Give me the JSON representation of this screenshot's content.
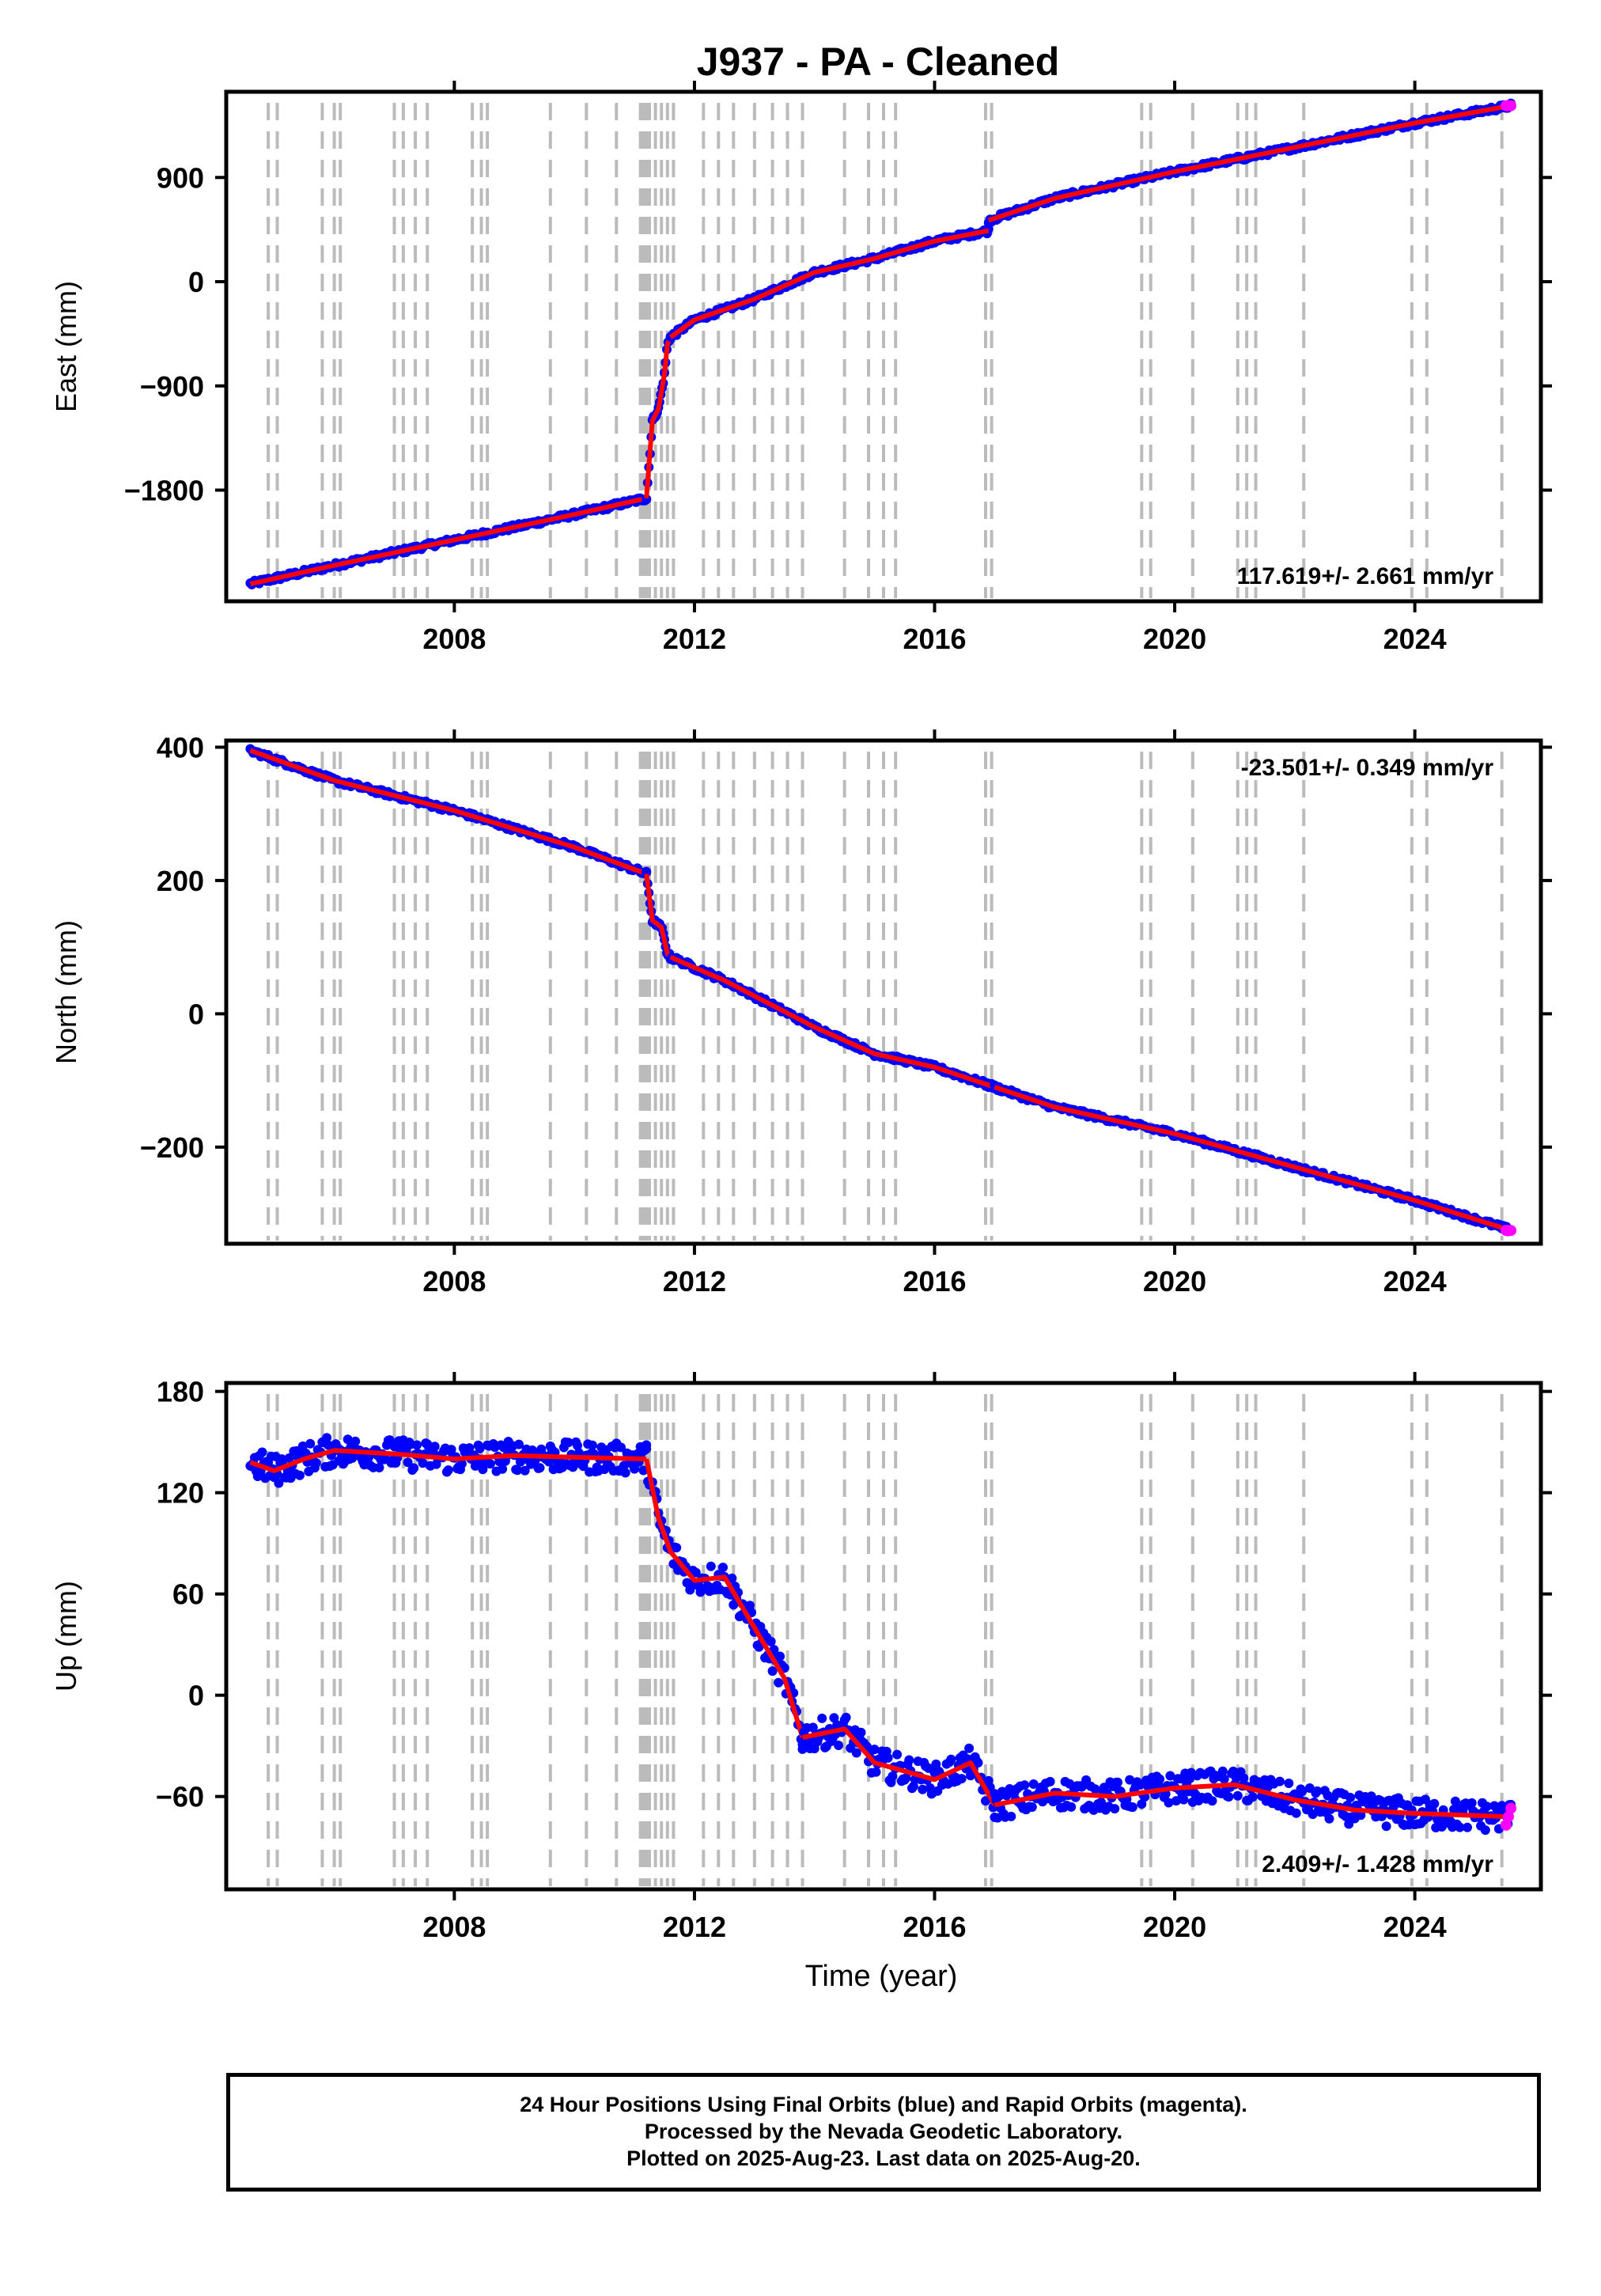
{
  "title": "J937  - PA - Cleaned",
  "xlabel": "Time (year)",
  "footer": {
    "line1": "24 Hour Positions Using Final Orbits (blue) and Rapid Orbits (magenta).",
    "line2": "Processed by the Nevada Geodetic Laboratory.",
    "line3": "Plotted on 2025-Aug-23. Last data on 2025-Aug-20."
  },
  "colors": {
    "final_orbits": "#0000ff",
    "rapid_orbits": "#ff00ff",
    "model": "#ff0000",
    "event_lines": "#bbbbbb"
  },
  "chart_data": [
    {
      "type": "scatter",
      "ylabel": "East (mm)",
      "annotation": "117.619+/- 2.661 mm/yr",
      "xlim": [
        2004.2,
        2026.1
      ],
      "ylim": [
        -2760,
        1640
      ],
      "yticks": [
        -1800,
        -900,
        0,
        900
      ],
      "xticks": [
        2008,
        2012,
        2016,
        2020,
        2024
      ],
      "series": [
        {
          "x": [
            2004.6,
            2006,
            2008,
            2010,
            2011.2
          ],
          "y": [
            -2610,
            -2450,
            -2230,
            -2010,
            -1870
          ]
        },
        {
          "x": [
            2011.2,
            2011.3,
            2011.4,
            2011.5,
            2011.55,
            2011.6
          ],
          "y": [
            -1870,
            -1200,
            -1100,
            -800,
            -540,
            -480
          ]
        },
        {
          "x": [
            2011.6,
            2012,
            2013,
            2014,
            2015,
            2016,
            2016.9
          ],
          "y": [
            -480,
            -330,
            -150,
            80,
            200,
            350,
            440
          ]
        },
        {
          "x": [
            2016.9,
            2018,
            2020,
            2022,
            2024,
            2025.6
          ],
          "y": [
            530,
            720,
            950,
            1160,
            1370,
            1520
          ]
        }
      ],
      "event_dates": [
        2004.9,
        2005.05,
        2005.8,
        2006,
        2006.1,
        2007.0,
        2007.15,
        2007.35,
        2007.55,
        2008.3,
        2008.45,
        2008.55,
        2009.6,
        2010.2,
        2010.7,
        2011.1,
        2011.15,
        2011.2,
        2011.25,
        2011.35,
        2011.45,
        2011.55,
        2011.65,
        2012.15,
        2012.4,
        2012.65,
        2013.0,
        2013.3,
        2013.55,
        2013.8,
        2014.5,
        2014.9,
        2015.15,
        2015.35,
        2016.85,
        2016.95,
        2019.45,
        2019.6,
        2020.3,
        2021.05,
        2021.2,
        2021.35,
        2022.15,
        2023.95,
        2024.2,
        2025.45
      ]
    },
    {
      "type": "scatter",
      "ylabel": "North (mm)",
      "annotation": "-23.501+/- 0.349 mm/yr",
      "xlim": [
        2004.2,
        2026.1
      ],
      "ylim": [
        -345,
        410
      ],
      "yticks": [
        -200,
        0,
        200,
        400
      ],
      "xticks": [
        2008,
        2012,
        2016,
        2020,
        2024
      ],
      "series": [
        {
          "x": [
            2004.6,
            2006,
            2008,
            2010,
            2011.2
          ],
          "y": [
            395,
            350,
            305,
            250,
            210
          ]
        },
        {
          "x": [
            2011.2,
            2011.3,
            2011.45,
            2011.55,
            2011.6
          ],
          "y": [
            210,
            140,
            130,
            90,
            85
          ]
        },
        {
          "x": [
            2011.6,
            2012.5,
            2014,
            2015,
            2016,
            2017
          ],
          "y": [
            85,
            50,
            -20,
            -60,
            -80,
            -110
          ]
        },
        {
          "x": [
            2017,
            2018,
            2020,
            2022,
            2024,
            2025.6
          ],
          "y": [
            -110,
            -140,
            -180,
            -230,
            -280,
            -325
          ]
        }
      ],
      "event_dates": [
        2004.9,
        2005.05,
        2005.8,
        2006,
        2006.1,
        2007.0,
        2007.15,
        2007.35,
        2007.55,
        2008.3,
        2008.45,
        2008.55,
        2009.6,
        2010.2,
        2010.7,
        2011.1,
        2011.15,
        2011.2,
        2011.25,
        2011.35,
        2011.45,
        2011.55,
        2011.65,
        2012.15,
        2012.4,
        2012.65,
        2013.0,
        2013.3,
        2013.55,
        2013.8,
        2014.5,
        2014.9,
        2015.15,
        2015.35,
        2016.85,
        2016.95,
        2019.45,
        2019.6,
        2020.3,
        2021.05,
        2021.2,
        2021.35,
        2022.15,
        2023.95,
        2024.2,
        2025.45
      ]
    },
    {
      "type": "scatter",
      "ylabel": "Up (mm)",
      "annotation": "2.409+/- 1.428 mm/yr",
      "xlim": [
        2004.2,
        2026.1
      ],
      "ylim": [
        -115,
        185
      ],
      "yticks": [
        -60,
        0,
        60,
        120,
        180
      ],
      "xticks": [
        2008,
        2012,
        2016,
        2020,
        2024
      ],
      "series": [
        {
          "x": [
            2004.6,
            2005,
            2005.5,
            2006,
            2007,
            2008,
            2009,
            2010,
            2011.2
          ],
          "y": [
            138,
            133,
            140,
            145,
            143,
            140,
            142,
            141,
            140
          ]
        },
        {
          "x": [
            2011.2,
            2011.4,
            2011.6,
            2012,
            2012.5,
            2013,
            2013.5,
            2013.8
          ],
          "y": [
            140,
            105,
            85,
            68,
            70,
            40,
            10,
            -25
          ]
        },
        {
          "x": [
            2013.8,
            2014.5,
            2015,
            2016,
            2016.6,
            2017
          ],
          "y": [
            -25,
            -20,
            -40,
            -50,
            -40,
            -65
          ]
        },
        {
          "x": [
            2017,
            2018,
            2019,
            2020,
            2021,
            2022,
            2023,
            2024,
            2025.6
          ],
          "y": [
            -65,
            -58,
            -60,
            -55,
            -53,
            -62,
            -68,
            -70,
            -72
          ]
        }
      ],
      "event_dates": [
        2004.9,
        2005.05,
        2005.8,
        2006,
        2006.1,
        2007.0,
        2007.15,
        2007.35,
        2007.55,
        2008.3,
        2008.45,
        2008.55,
        2009.6,
        2010.2,
        2010.7,
        2011.1,
        2011.15,
        2011.2,
        2011.25,
        2011.35,
        2011.45,
        2011.55,
        2011.65,
        2012.15,
        2012.4,
        2012.65,
        2013.0,
        2013.3,
        2013.55,
        2013.8,
        2014.5,
        2014.9,
        2015.15,
        2015.35,
        2016.85,
        2016.95,
        2019.45,
        2019.6,
        2020.3,
        2021.05,
        2021.2,
        2021.35,
        2022.15,
        2023.95,
        2024.2,
        2025.45
      ]
    }
  ]
}
